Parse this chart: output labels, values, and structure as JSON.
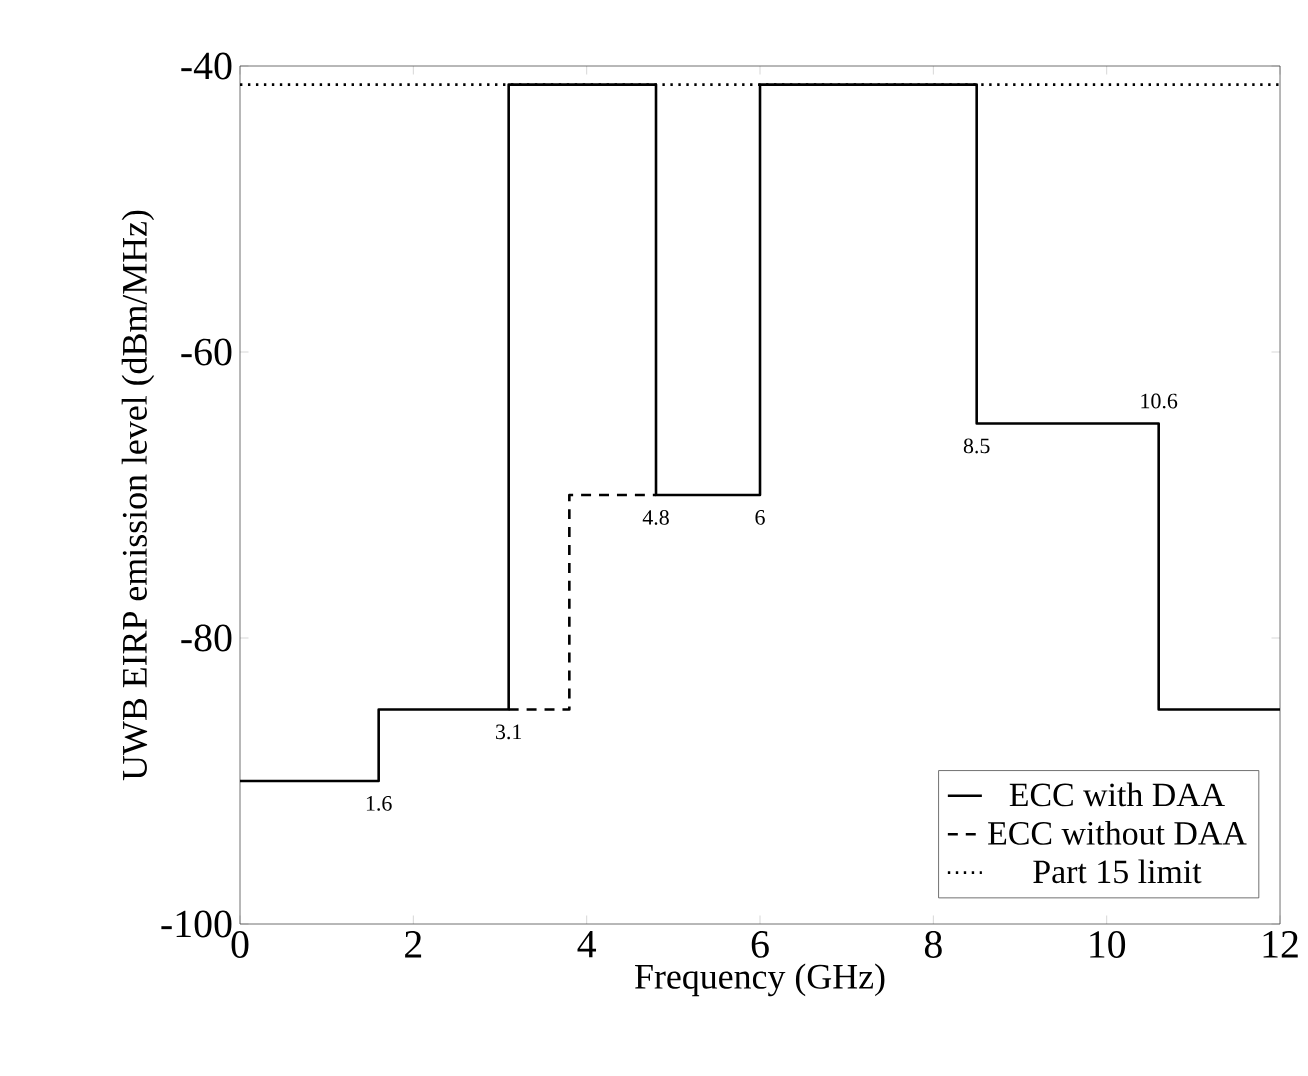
{
  "chart_data": {
    "type": "step",
    "xlabel": "Frequency (GHz)",
    "ylabel": "UWB EIRP emission level (dBm/MHz)",
    "xlim": [
      0,
      12
    ],
    "ylim": [
      -100,
      -40
    ],
    "xticks": [
      0,
      2,
      4,
      6,
      8,
      10,
      12
    ],
    "yticks": [
      -100,
      -80,
      -60,
      -40
    ],
    "legend": "bottom right",
    "series": [
      {
        "name": "ECC with DAA",
        "color": "#000000",
        "line_style": "solid",
        "x": [
          0,
          1.6,
          3.1,
          4.8,
          6,
          8.5,
          10.6,
          12
        ],
        "values": [
          -90,
          -85,
          -41.3,
          -70,
          -41.3,
          -65,
          -85,
          -85
        ]
      },
      {
        "name": "ECC without DAA",
        "color": "#000000",
        "line_style": "dashed",
        "x": [
          3.1,
          3.8,
          4.8
        ],
        "values": [
          -85,
          -70,
          -70
        ]
      },
      {
        "name": "Part 15 limit",
        "color": "#000000",
        "line_style": "dotted",
        "x": [
          0,
          12
        ],
        "values": [
          -41.3,
          -41.3
        ]
      }
    ],
    "annotations": [
      {
        "text": "1.6",
        "x": 1.6,
        "y": -90
      },
      {
        "text": "3.1",
        "x": 3.1,
        "y": -85
      },
      {
        "text": "4.8",
        "x": 4.8,
        "y": -70
      },
      {
        "text": "6",
        "x": 6,
        "y": -70
      },
      {
        "text": "8.5",
        "x": 8.5,
        "y": -65
      },
      {
        "text": "10.6",
        "x": 10.6,
        "y": -65
      }
    ]
  }
}
